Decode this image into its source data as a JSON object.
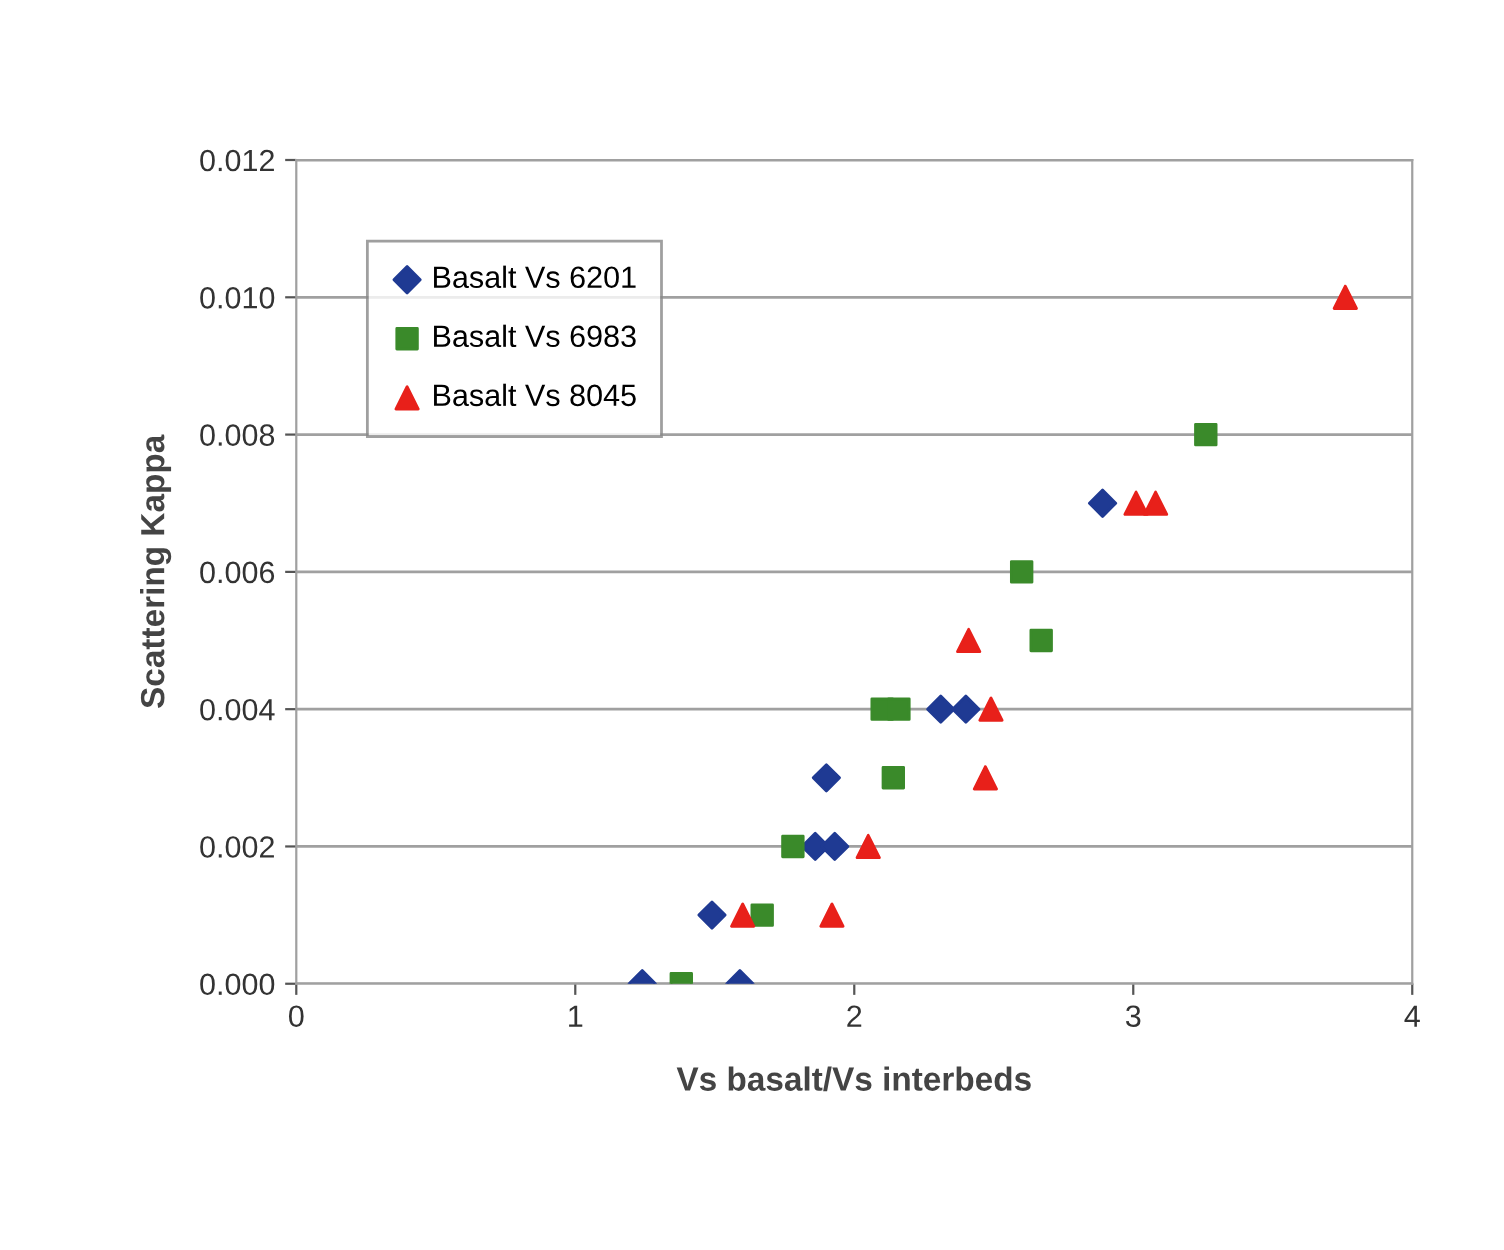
{
  "chart_data": {
    "type": "scatter",
    "xlabel": "Vs basalt/Vs interbeds",
    "ylabel": "Scattering Kappa",
    "xlim": [
      0,
      4
    ],
    "xticks": [
      0,
      1,
      2,
      3,
      4
    ],
    "ylim": [
      0,
      0.012
    ],
    "yticks": [
      {
        "value": 0,
        "label": "0.000"
      },
      {
        "value": 0.002,
        "label": "0.002"
      },
      {
        "value": 0.004,
        "label": "0.004"
      },
      {
        "value": 0.006,
        "label": "0.006"
      },
      {
        "value": 0.008,
        "label": "0.008"
      },
      {
        "value": 0.01,
        "label": "0.010"
      },
      {
        "value": 0.012,
        "label": "0.012"
      }
    ],
    "grid": "y",
    "legend": "top left",
    "series": [
      {
        "name": "Basalt Vs 6201",
        "color": "#1f3a93",
        "marker": "diamond",
        "x": [
          1.24,
          1.59,
          1.49,
          1.86,
          1.93,
          1.9,
          2.31,
          2.4,
          2.89
        ],
        "values": [
          0,
          0,
          0.001,
          0.002,
          0.002,
          0.003,
          0.004,
          0.004,
          0.007
        ]
      },
      {
        "name": "Basalt Vs 6983",
        "color": "#3a8a2a",
        "marker": "square",
        "x": [
          1.38,
          1.67,
          1.78,
          2.14,
          2.1,
          2.16,
          2.67,
          2.6,
          3.26
        ],
        "values": [
          0,
          0.001,
          0.002,
          0.003,
          0.004,
          0.004,
          0.005,
          0.006,
          0.008
        ]
      },
      {
        "name": "Basalt Vs 8045",
        "color": "#e8201a",
        "marker": "triangle",
        "x": [
          1.6,
          1.92,
          2.05,
          2.47,
          2.49,
          2.41,
          3.01,
          3.08,
          3.76
        ],
        "values": [
          0.001,
          0.001,
          0.002,
          0.003,
          0.004,
          0.005,
          0.007,
          0.007,
          0.01
        ]
      }
    ]
  }
}
